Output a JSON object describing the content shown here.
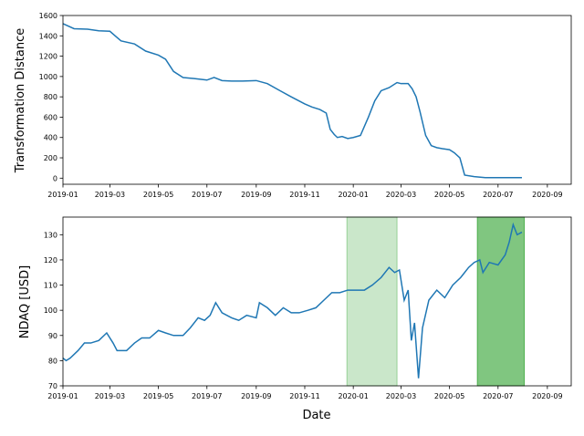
{
  "chart_data": [
    {
      "type": "line",
      "title": "",
      "xlabel": "",
      "ylabel": "Transformation Distance",
      "xlim": [
        "2019-01-01",
        "2020-10-01"
      ],
      "ylim": [
        -60,
        1600
      ],
      "x_ticks": [
        "2019-01",
        "2019-03",
        "2019-05",
        "2019-07",
        "2019-09",
        "2019-11",
        "2020-01",
        "2020-03",
        "2020-05",
        "2020-07",
        "2020-09"
      ],
      "y_ticks": [
        0,
        200,
        400,
        600,
        800,
        1000,
        1200,
        1400,
        1600
      ],
      "color": "#1f77b4",
      "series": [
        {
          "x": [
            "2019-01-01",
            "2019-01-15",
            "2019-02-01",
            "2019-02-15",
            "2019-03-01",
            "2019-03-15",
            "2019-04-01",
            "2019-04-15",
            "2019-05-01",
            "2019-05-10",
            "2019-05-20",
            "2019-06-01",
            "2019-06-15",
            "2019-07-01",
            "2019-07-10",
            "2019-07-20",
            "2019-08-01",
            "2019-08-15",
            "2019-09-01",
            "2019-09-15",
            "2019-10-01",
            "2019-10-15",
            "2019-11-01",
            "2019-11-10",
            "2019-11-20",
            "2019-11-28",
            "2019-12-03",
            "2019-12-08",
            "2019-12-12",
            "2019-12-18",
            "2019-12-25",
            "2020-01-01",
            "2020-01-10",
            "2020-01-20",
            "2020-01-28",
            "2020-02-05",
            "2020-02-15",
            "2020-02-25",
            "2020-03-01",
            "2020-03-10",
            "2020-03-15",
            "2020-03-20",
            "2020-03-25",
            "2020-04-01",
            "2020-04-08",
            "2020-04-15",
            "2020-04-22",
            "2020-05-01",
            "2020-05-07",
            "2020-05-14",
            "2020-05-20",
            "2020-06-01",
            "2020-06-15",
            "2020-07-01",
            "2020-07-15",
            "2020-07-31"
          ],
          "values": [
            1520,
            1470,
            1465,
            1450,
            1445,
            1350,
            1320,
            1250,
            1210,
            1170,
            1050,
            990,
            980,
            965,
            990,
            960,
            955,
            955,
            960,
            930,
            860,
            800,
            730,
            700,
            675,
            640,
            480,
            430,
            400,
            410,
            390,
            400,
            420,
            600,
            760,
            860,
            890,
            940,
            930,
            930,
            880,
            800,
            650,
            420,
            320,
            300,
            290,
            280,
            250,
            200,
            30,
            15,
            5,
            5,
            5,
            5
          ]
        }
      ]
    },
    {
      "type": "line",
      "title": "",
      "xlabel": "Date",
      "ylabel": "NDAQ [USD]",
      "xlim": [
        "2019-01-01",
        "2020-10-01"
      ],
      "ylim": [
        70,
        137
      ],
      "x_ticks": [
        "2019-01",
        "2019-03",
        "2019-05",
        "2019-07",
        "2019-09",
        "2019-11",
        "2020-01",
        "2020-03",
        "2020-05",
        "2020-07",
        "2020-09"
      ],
      "y_ticks": [
        70,
        80,
        90,
        100,
        110,
        120,
        130
      ],
      "color": "#1f77b4",
      "shaded_spans": [
        {
          "start": "2019-12-24",
          "end": "2020-02-25",
          "color": "#2ca02c",
          "opacity": 0.25
        },
        {
          "start": "2020-06-05",
          "end": "2020-08-03",
          "color": "#2ca02c",
          "opacity": 0.6
        }
      ],
      "series": [
        {
          "x": [
            "2019-01-01",
            "2019-01-05",
            "2019-01-10",
            "2019-01-20",
            "2019-01-28",
            "2019-02-05",
            "2019-02-15",
            "2019-02-25",
            "2019-03-05",
            "2019-03-10",
            "2019-03-15",
            "2019-03-22",
            "2019-04-01",
            "2019-04-10",
            "2019-04-20",
            "2019-05-01",
            "2019-05-10",
            "2019-05-20",
            "2019-06-01",
            "2019-06-10",
            "2019-06-20",
            "2019-06-28",
            "2019-07-05",
            "2019-07-12",
            "2019-07-20",
            "2019-08-01",
            "2019-08-10",
            "2019-08-20",
            "2019-09-01",
            "2019-09-05",
            "2019-09-15",
            "2019-09-25",
            "2019-10-05",
            "2019-10-15",
            "2019-10-25",
            "2019-11-05",
            "2019-11-15",
            "2019-11-25",
            "2019-12-05",
            "2019-12-15",
            "2019-12-25",
            "2020-01-05",
            "2020-01-15",
            "2020-01-25",
            "2020-02-05",
            "2020-02-15",
            "2020-02-22",
            "2020-02-28",
            "2020-03-05",
            "2020-03-10",
            "2020-03-14",
            "2020-03-18",
            "2020-03-23",
            "2020-03-28",
            "2020-04-05",
            "2020-04-15",
            "2020-04-25",
            "2020-05-05",
            "2020-05-15",
            "2020-05-25",
            "2020-06-01",
            "2020-06-08",
            "2020-06-12",
            "2020-06-20",
            "2020-07-01",
            "2020-07-10",
            "2020-07-15",
            "2020-07-20",
            "2020-07-25",
            "2020-07-31"
          ],
          "values": [
            81,
            80,
            81,
            84,
            87,
            87,
            88,
            91,
            87,
            84,
            84,
            84,
            87,
            89,
            89,
            92,
            91,
            90,
            90,
            93,
            97,
            96,
            98,
            103,
            99,
            97,
            96,
            98,
            97,
            103,
            101,
            98,
            101,
            99,
            99,
            100,
            101,
            104,
            107,
            107,
            108,
            108,
            108,
            110,
            113,
            117,
            115,
            116,
            104,
            108,
            88,
            95,
            73,
            93,
            104,
            108,
            105,
            110,
            113,
            117,
            119,
            120,
            115,
            119,
            118,
            122,
            127,
            134,
            130,
            131
          ]
        }
      ]
    }
  ]
}
